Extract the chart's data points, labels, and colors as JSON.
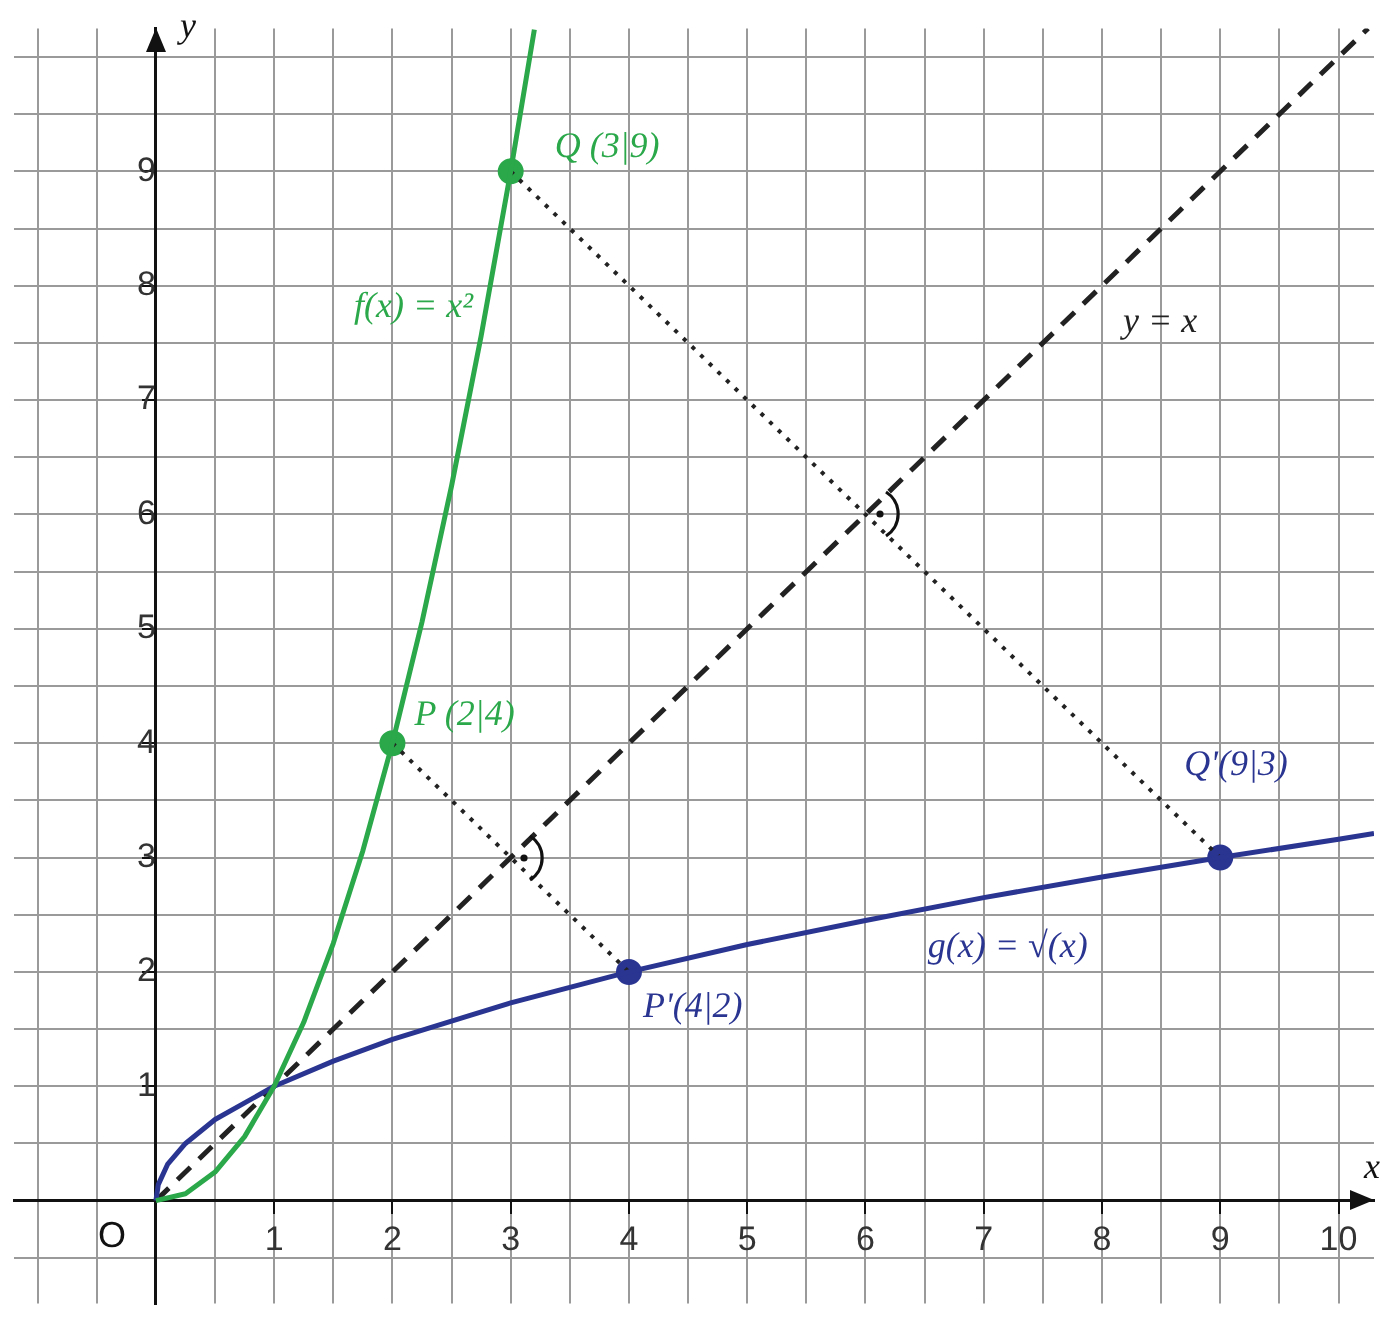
{
  "chart_data": {
    "type": "line",
    "xlabel": "x",
    "ylabel": "y",
    "xlim": [
      -1.2,
      10.3
    ],
    "ylim": [
      -0.9,
      10.25
    ],
    "xticks": [
      {
        "value": -1,
        "label": null
      },
      {
        "value": -0.5,
        "label": null
      },
      {
        "value": 0,
        "label": null
      },
      {
        "value": 0.5,
        "label": null
      },
      1,
      {
        "value": 1.5,
        "label": null
      },
      2,
      {
        "value": 2.5,
        "label": null
      },
      3,
      {
        "value": 3.5,
        "label": null
      },
      4,
      {
        "value": 4.5,
        "label": null
      },
      5,
      {
        "value": 5.5,
        "label": null
      },
      6,
      {
        "value": 6.5,
        "label": null
      },
      7,
      {
        "value": 7.5,
        "label": null
      },
      8,
      {
        "value": 8.5,
        "label": null
      },
      9,
      {
        "value": 9.5,
        "label": null
      },
      10
    ],
    "yticks": [
      {
        "value": -0.5,
        "label": null
      },
      {
        "value": 0,
        "label": null
      },
      {
        "value": 0.5,
        "label": null
      },
      1,
      {
        "value": 1.5,
        "label": null
      },
      2,
      {
        "value": 2.5,
        "label": null
      },
      3,
      {
        "value": 3.5,
        "label": null
      },
      4,
      {
        "value": 4.5,
        "label": null
      },
      5,
      {
        "value": 5.5,
        "label": null
      },
      6,
      {
        "value": 6.5,
        "label": null
      },
      7,
      {
        "value": 7.5,
        "label": null
      },
      8,
      {
        "value": 8.5,
        "label": null
      },
      9,
      {
        "value": 9.5,
        "label": null
      },
      {
        "value": 10,
        "label": null
      }
    ],
    "grid": true,
    "annotations": [
      {
        "text": "O",
        "x": 0,
        "y": 0
      }
    ],
    "series": [
      {
        "name": "f(x) = x²",
        "color": "#2aa84a",
        "line_style": "solid",
        "marker": "none",
        "x": [
          0,
          0.25,
          0.5,
          0.75,
          1,
          1.25,
          1.5,
          1.75,
          2,
          2.25,
          2.5,
          2.75,
          3,
          3.2
        ],
        "values": [
          0,
          0.06,
          0.25,
          0.56,
          1,
          1.56,
          2.25,
          3.06,
          4,
          5.06,
          6.25,
          7.56,
          9,
          10.24
        ]
      },
      {
        "name": "g(x) = √(x)",
        "color": "#2a3592",
        "line_style": "solid",
        "marker": "none",
        "x": [
          0,
          0.02,
          0.1,
          0.25,
          0.5,
          1,
          1.5,
          2,
          3,
          4,
          5,
          6,
          7,
          8,
          9,
          10,
          10.3
        ],
        "values": [
          0,
          0.14,
          0.32,
          0.5,
          0.71,
          1,
          1.22,
          1.41,
          1.73,
          2,
          2.24,
          2.45,
          2.65,
          2.83,
          3,
          3.16,
          3.21
        ]
      },
      {
        "name": "y = x",
        "color": "#222222",
        "line_style": "dashed",
        "marker": "none",
        "x": [
          0,
          10.25
        ],
        "values": [
          0,
          10.25
        ]
      },
      {
        "color": "#222222",
        "line_style": "dotted",
        "marker": "none",
        "x": [
          3,
          9
        ],
        "values": [
          9,
          3
        ]
      },
      {
        "color": "#222222",
        "line_style": "dotted",
        "marker": "none",
        "x": [
          2,
          4
        ],
        "values": [
          4,
          2
        ]
      },
      {
        "type": "scatter",
        "color": "#2aa84a",
        "marker": "circle",
        "x": [
          2,
          3
        ],
        "values": [
          4,
          9
        ],
        "value_labels": [
          "P (2|4)",
          "Q (3|9)"
        ]
      },
      {
        "type": "scatter",
        "color": "#2a3592",
        "marker": "circle",
        "x": [
          4,
          9
        ],
        "values": [
          2,
          3
        ],
        "value_labels": [
          "P'(4|2)",
          "Q'(9|3)"
        ]
      }
    ]
  }
}
